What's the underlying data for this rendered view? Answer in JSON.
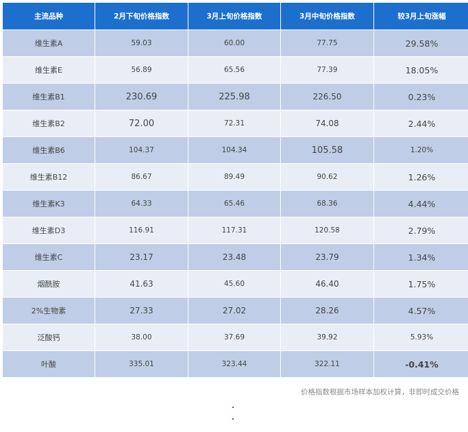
{
  "table": {
    "headers": [
      "主流品种",
      "2月下旬价格指数",
      "3月上旬价格指数",
      "3月中旬价格指数",
      "较3月上旬涨幅"
    ],
    "rows": [
      {
        "name": "维生素A",
        "feb_late": "59.03",
        "mar_early": "60.00",
        "mar_mid": "77.75",
        "change": "29.58%",
        "direction": "up"
      },
      {
        "name": "维生素E",
        "feb_late": "56.89",
        "mar_early": "65.56",
        "mar_mid": "77.39",
        "change": "18.05%",
        "direction": "up"
      },
      {
        "name": "维生素B1",
        "feb_late": "230.69",
        "mar_early": "225.98",
        "mar_mid": "226.50",
        "change": "0.23%",
        "direction": "up"
      },
      {
        "name": "维生素B2",
        "feb_late": "72.00",
        "mar_early": "72.31",
        "mar_mid": "74.08",
        "change": "2.44%",
        "direction": "up"
      },
      {
        "name": "维生素B6",
        "feb_late": "104.37",
        "mar_early": "104.34",
        "mar_mid": "105.58",
        "change": "1.20%",
        "direction": "up"
      },
      {
        "name": "维生素B12",
        "feb_late": "86.67",
        "mar_early": "89.49",
        "mar_mid": "90.62",
        "change": "1.26%",
        "direction": "up"
      },
      {
        "name": "维生素K3",
        "feb_late": "64.33",
        "mar_early": "65.46",
        "mar_mid": "68.36",
        "change": "4.44%",
        "direction": "up"
      },
      {
        "name": "维生素D3",
        "feb_late": "116.91",
        "mar_early": "117.31",
        "mar_mid": "120.58",
        "change": "2.79%",
        "direction": "up"
      },
      {
        "name": "维生素C",
        "feb_late": "23.17",
        "mar_early": "23.48",
        "mar_mid": "23.79",
        "change": "1.34%",
        "direction": "up"
      },
      {
        "name": "烟酰胺",
        "feb_late": "41.63",
        "mar_early": "45.60",
        "mar_mid": "46.40",
        "change": "1.75%",
        "direction": "up"
      },
      {
        "name": "2%生物素",
        "feb_late": "27.33",
        "mar_early": "27.02",
        "mar_mid": "28.26",
        "change": "4.57%",
        "direction": "up"
      },
      {
        "name": "泛酸钙",
        "feb_late": "38.00",
        "mar_early": "37.69",
        "mar_mid": "39.92",
        "change": "5.93%",
        "direction": "up"
      },
      {
        "name": "叶酸",
        "feb_late": "335.01",
        "mar_early": "323.44",
        "mar_mid": "322.11",
        "change": "-0.41%",
        "direction": "down"
      }
    ]
  },
  "footnote": "价格指数根据市场样本加权计算，非即时成交价格",
  "colors": {
    "header_bg": "#1d6fce",
    "row_odd_bg": "#bfcee6",
    "row_even_bg": "#e9eef6",
    "up": "#e8193c",
    "down": "#2f8a2c"
  }
}
